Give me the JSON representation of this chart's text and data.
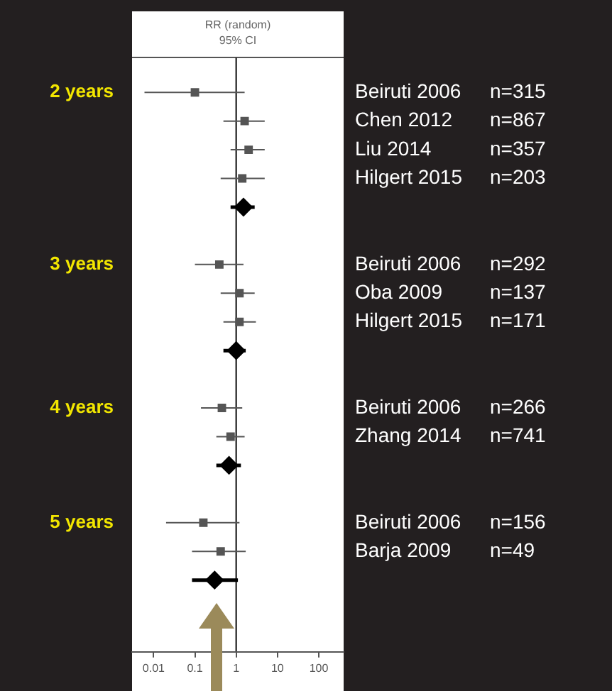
{
  "chart_data": {
    "type": "scatter",
    "orientation": "horizontal",
    "title": "RR (random)",
    "subtitle": "95% CI",
    "categories": [
      "Beiruti 2006",
      "Chen 2012",
      "Liu 2014",
      "Hilgert 2015",
      null,
      null,
      "Beiruti 2006",
      "Oba 2009",
      "Hilgert 2015",
      null,
      null,
      "Beiruti 2006",
      "Zhang 2014",
      null,
      null,
      "Beiruti 2006",
      "Barja 2009",
      null
    ],
    "y2_categories": [
      "n=315",
      "n=867",
      "n=357",
      "n=203",
      null,
      null,
      "n=292",
      "n=137",
      "n=171",
      null,
      null,
      "n=266",
      "n=741",
      null,
      null,
      "n=156",
      "n=49",
      null
    ],
    "series": [
      {
        "color": "#555555",
        "marker": "square",
        "values": [
          0.1,
          1.6,
          2.0,
          1.4,
          null,
          null,
          0.39,
          1.2,
          1.2,
          null,
          null,
          0.45,
          0.73,
          null,
          null,
          0.16,
          0.42,
          null
        ],
        "errors": [
          [
            0.006,
            1.6
          ],
          [
            0.49,
            4.9
          ],
          [
            0.73,
            4.9
          ],
          [
            0.42,
            4.9
          ],
          null,
          null,
          [
            0.1,
            1.5
          ],
          [
            0.42,
            2.8
          ],
          [
            0.49,
            3.0
          ],
          null,
          null,
          [
            0.14,
            1.4
          ],
          [
            0.33,
            1.6
          ],
          null,
          null,
          [
            0.02,
            1.2
          ],
          [
            0.085,
            1.7
          ],
          null
        ]
      },
      {
        "color": "#000000",
        "marker": "diamond",
        "values": [
          null,
          null,
          null,
          null,
          1.5,
          null,
          null,
          null,
          null,
          1.0,
          null,
          null,
          null,
          0.67,
          null,
          null,
          null,
          0.3
        ],
        "errors": [
          null,
          null,
          null,
          null,
          [
            0.73,
            2.8
          ],
          null,
          null,
          null,
          null,
          [
            0.49,
            1.7
          ],
          null,
          null,
          null,
          [
            0.33,
            1.3
          ],
          null,
          null,
          null,
          [
            0.085,
            1.1
          ]
        ]
      }
    ],
    "annotations": [
      "2 years",
      "3 years",
      "4 years",
      "5 years"
    ],
    "log": "x",
    "xlim": [
      0.003,
      400
    ],
    "xticks": [
      0.01,
      0.1,
      1,
      10,
      100
    ],
    "ref_lines": [
      {
        "axis": "x",
        "value": 1,
        "color": "#333333"
      }
    ],
    "grid": false,
    "legend": false
  }
}
